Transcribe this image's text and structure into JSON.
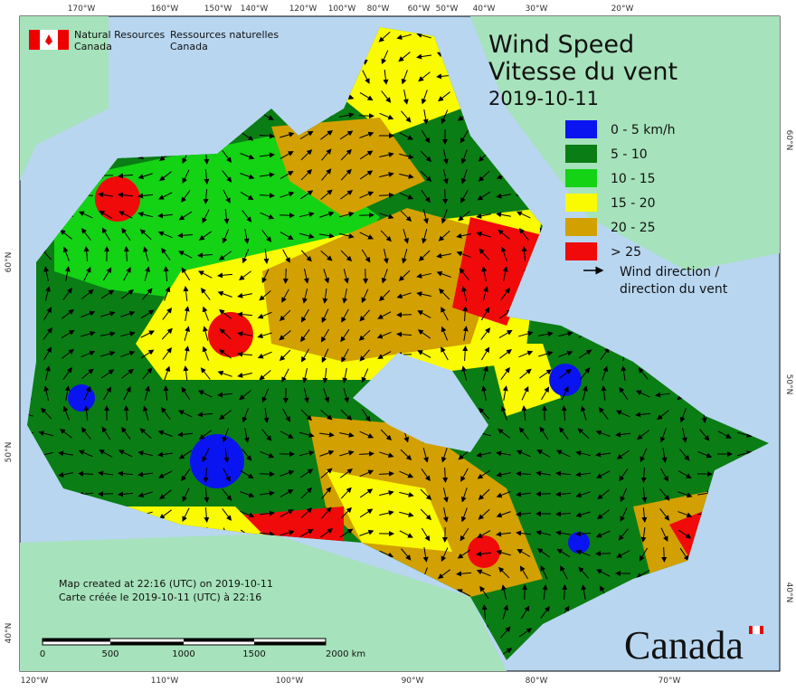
{
  "header": {
    "org_en": [
      "Natural Resources",
      "Canada"
    ],
    "org_fr": [
      "Ressources naturelles",
      "Canada"
    ]
  },
  "title": {
    "line1": "Wind Speed",
    "line2": "Vitesse du vent",
    "date": "2019-10-11"
  },
  "legend": {
    "items": [
      {
        "label": "0 - 5 km/h",
        "color": "#0a14f0"
      },
      {
        "label": "5 - 10",
        "color": "#0a7d14"
      },
      {
        "label": "10 - 15",
        "color": "#14d214"
      },
      {
        "label": "15 - 20",
        "color": "#fafa00"
      },
      {
        "label": "20 - 25",
        "color": "#d2a000"
      },
      {
        "label": "> 25",
        "color": "#f00a0a"
      }
    ],
    "arrow_label": [
      "Wind direction /",
      "direction du vent"
    ]
  },
  "footer": {
    "created_en": "Map created at 22:16 (UTC) on 2019-10-11",
    "created_fr": "Carte créée le 2019-10-11 (UTC) à 22:16"
  },
  "scale_bar": {
    "labels": [
      "0",
      "500",
      "1000",
      "1500",
      "2000  km"
    ]
  },
  "wordmark": "Canada",
  "graticule": {
    "top": [
      "170°W",
      "160°W",
      "150°W",
      "140°W",
      "120°W",
      "100°W",
      "80°W",
      "60°W",
      "50°W",
      "40°W",
      "30°W",
      "20°W"
    ],
    "bottom": [
      "120°W",
      "110°W",
      "100°W",
      "90°W",
      "80°W",
      "70°W"
    ],
    "left": [
      "60°N",
      "50°N",
      "40°N"
    ],
    "right": [
      "60°N",
      "50°N",
      "40°N"
    ]
  }
}
